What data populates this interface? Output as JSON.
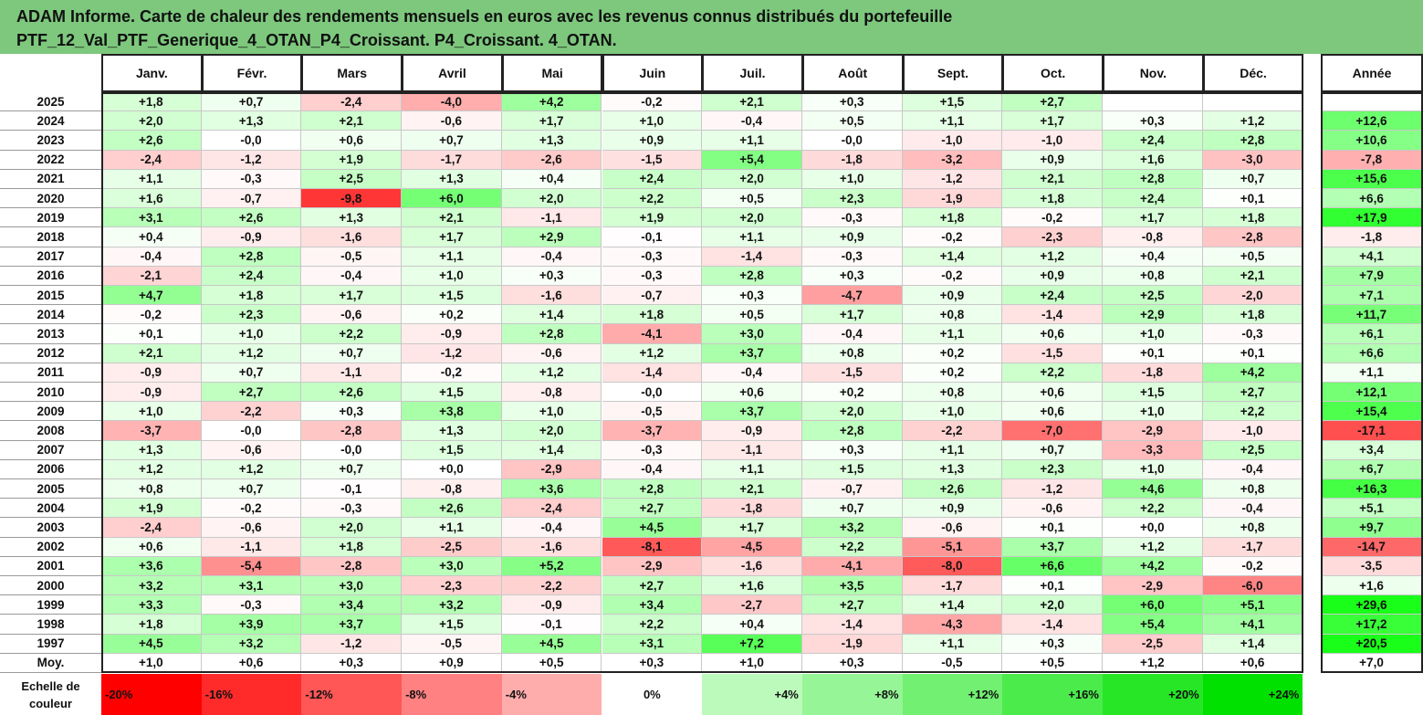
{
  "title": {
    "line1": "ADAM Informe. Carte de chaleur des rendements mensuels en euros avec les revenus connus distribués du portefeuille",
    "line2": "PTF_12_Val_PTF_Generique_4_OTAN_P4_Croissant. P4_Croissant. 4_OTAN."
  },
  "chart_data": {
    "type": "heatmap",
    "columns": [
      "Janv.",
      "Févr.",
      "Mars",
      "Avril",
      "Mai",
      "Juin",
      "Juil.",
      "Août",
      "Sept.",
      "Oct.",
      "Nov.",
      "Déc."
    ],
    "annual_column": "Année",
    "rows": [
      {
        "label": "2025",
        "values": [
          "+1,8",
          "+0,7",
          "-2,4",
          "-4,0",
          "+4,2",
          "-0,2",
          "+2,1",
          "+0,3",
          "+1,5",
          "+2,7",
          "",
          ""
        ],
        "annual": ""
      },
      {
        "label": "2024",
        "values": [
          "+2,0",
          "+1,3",
          "+2,1",
          "-0,6",
          "+1,7",
          "+1,0",
          "-0,4",
          "+0,5",
          "+1,1",
          "+1,7",
          "+0,3",
          "+1,2"
        ],
        "annual": "+12,6"
      },
      {
        "label": "2023",
        "values": [
          "+2,6",
          "-0,0",
          "+0,6",
          "+0,7",
          "+1,3",
          "+0,9",
          "+1,1",
          "-0,0",
          "-1,0",
          "-1,0",
          "+2,4",
          "+2,8"
        ],
        "annual": "+10,6"
      },
      {
        "label": "2022",
        "values": [
          "-2,4",
          "-1,2",
          "+1,9",
          "-1,7",
          "-2,6",
          "-1,5",
          "+5,4",
          "-1,8",
          "-3,2",
          "+0,9",
          "+1,6",
          "-3,0"
        ],
        "annual": "-7,8"
      },
      {
        "label": "2021",
        "values": [
          "+1,1",
          "-0,3",
          "+2,5",
          "+1,3",
          "+0,4",
          "+2,4",
          "+2,0",
          "+1,0",
          "-1,2",
          "+2,1",
          "+2,8",
          "+0,7"
        ],
        "annual": "+15,6"
      },
      {
        "label": "2020",
        "values": [
          "+1,6",
          "-0,7",
          "-9,8",
          "+6,0",
          "+2,0",
          "+2,2",
          "+0,5",
          "+2,3",
          "-1,9",
          "+1,8",
          "+2,4",
          "+0,1"
        ],
        "annual": "+6,6"
      },
      {
        "label": "2019",
        "values": [
          "+3,1",
          "+2,6",
          "+1,3",
          "+2,1",
          "-1,1",
          "+1,9",
          "+2,0",
          "-0,3",
          "+1,8",
          "-0,2",
          "+1,7",
          "+1,8"
        ],
        "annual": "+17,9"
      },
      {
        "label": "2018",
        "values": [
          "+0,4",
          "-0,9",
          "-1,6",
          "+1,7",
          "+2,9",
          "-0,1",
          "+1,1",
          "+0,9",
          "-0,2",
          "-2,3",
          "-0,8",
          "-2,8"
        ],
        "annual": "-1,8"
      },
      {
        "label": "2017",
        "values": [
          "-0,4",
          "+2,8",
          "-0,5",
          "+1,1",
          "-0,4",
          "-0,3",
          "-1,4",
          "-0,3",
          "+1,4",
          "+1,2",
          "+0,4",
          "+0,5"
        ],
        "annual": "+4,1"
      },
      {
        "label": "2016",
        "values": [
          "-2,1",
          "+2,4",
          "-0,4",
          "+1,0",
          "+0,3",
          "-0,3",
          "+2,8",
          "+0,3",
          "-0,2",
          "+0,9",
          "+0,8",
          "+2,1"
        ],
        "annual": "+7,9"
      },
      {
        "label": "2015",
        "values": [
          "+4,7",
          "+1,8",
          "+1,7",
          "+1,5",
          "-1,6",
          "-0,7",
          "+0,3",
          "-4,7",
          "+0,9",
          "+2,4",
          "+2,5",
          "-2,0"
        ],
        "annual": "+7,1"
      },
      {
        "label": "2014",
        "values": [
          "-0,2",
          "+2,3",
          "-0,6",
          "+0,2",
          "+1,4",
          "+1,8",
          "+0,5",
          "+1,7",
          "+0,8",
          "-1,4",
          "+2,9",
          "+1,8"
        ],
        "annual": "+11,7"
      },
      {
        "label": "2013",
        "values": [
          "+0,1",
          "+1,0",
          "+2,2",
          "-0,9",
          "+2,8",
          "-4,1",
          "+3,0",
          "-0,4",
          "+1,1",
          "+0,6",
          "+1,0",
          "-0,3"
        ],
        "annual": "+6,1"
      },
      {
        "label": "2012",
        "values": [
          "+2,1",
          "+1,2",
          "+0,7",
          "-1,2",
          "-0,6",
          "+1,2",
          "+3,7",
          "+0,8",
          "+0,2",
          "-1,5",
          "+0,1",
          "+0,1"
        ],
        "annual": "+6,6"
      },
      {
        "label": "2011",
        "values": [
          "-0,9",
          "+0,7",
          "-1,1",
          "-0,2",
          "+1,2",
          "-1,4",
          "-0,4",
          "-1,5",
          "+0,2",
          "+2,2",
          "-1,8",
          "+4,2"
        ],
        "annual": "+1,1"
      },
      {
        "label": "2010",
        "values": [
          "-0,9",
          "+2,7",
          "+2,6",
          "+1,5",
          "-0,8",
          "-0,0",
          "+0,6",
          "+0,2",
          "+0,8",
          "+0,6",
          "+1,5",
          "+2,7"
        ],
        "annual": "+12,1"
      },
      {
        "label": "2009",
        "values": [
          "+1,0",
          "-2,2",
          "+0,3",
          "+3,8",
          "+1,0",
          "-0,5",
          "+3,7",
          "+2,0",
          "+1,0",
          "+0,6",
          "+1,0",
          "+2,2"
        ],
        "annual": "+15,4"
      },
      {
        "label": "2008",
        "values": [
          "-3,7",
          "-0,0",
          "-2,8",
          "+1,3",
          "+2,0",
          "-3,7",
          "-0,9",
          "+2,8",
          "-2,2",
          "-7,0",
          "-2,9",
          "-1,0"
        ],
        "annual": "-17,1"
      },
      {
        "label": "2007",
        "values": [
          "+1,3",
          "-0,6",
          "-0,0",
          "+1,5",
          "+1,4",
          "-0,3",
          "-1,1",
          "+0,3",
          "+1,1",
          "+0,7",
          "-3,3",
          "+2,5"
        ],
        "annual": "+3,4"
      },
      {
        "label": "2006",
        "values": [
          "+1,2",
          "+1,2",
          "+0,7",
          "+0,0",
          "-2,9",
          "-0,4",
          "+1,1",
          "+1,5",
          "+1,3",
          "+2,3",
          "+1,0",
          "-0,4"
        ],
        "annual": "+6,7"
      },
      {
        "label": "2005",
        "values": [
          "+0,8",
          "+0,7",
          "-0,1",
          "-0,8",
          "+3,6",
          "+2,8",
          "+2,1",
          "-0,7",
          "+2,6",
          "-1,2",
          "+4,6",
          "+0,8"
        ],
        "annual": "+16,3"
      },
      {
        "label": "2004",
        "values": [
          "+1,9",
          "-0,2",
          "-0,3",
          "+2,6",
          "-2,4",
          "+2,7",
          "-1,8",
          "+0,7",
          "+0,9",
          "-0,6",
          "+2,2",
          "-0,4"
        ],
        "annual": "+5,1"
      },
      {
        "label": "2003",
        "values": [
          "-2,4",
          "-0,6",
          "+2,0",
          "+1,1",
          "-0,4",
          "+4,5",
          "+1,7",
          "+3,2",
          "-0,6",
          "+0,1",
          "+0,0",
          "+0,8"
        ],
        "annual": "+9,7"
      },
      {
        "label": "2002",
        "values": [
          "+0,6",
          "-1,1",
          "+1,8",
          "-2,5",
          "-1,6",
          "-8,1",
          "-4,5",
          "+2,2",
          "-5,1",
          "+3,7",
          "+1,2",
          "-1,7"
        ],
        "annual": "-14,7"
      },
      {
        "label": "2001",
        "values": [
          "+3,6",
          "-5,4",
          "-2,8",
          "+3,0",
          "+5,2",
          "-2,9",
          "-1,6",
          "-4,1",
          "-8,0",
          "+6,6",
          "+4,2",
          "-0,2"
        ],
        "annual": "-3,5"
      },
      {
        "label": "2000",
        "values": [
          "+3,2",
          "+3,1",
          "+3,0",
          "-2,3",
          "-2,2",
          "+2,7",
          "+1,6",
          "+3,5",
          "-1,7",
          "+0,1",
          "-2,9",
          "-6,0"
        ],
        "annual": "+1,6"
      },
      {
        "label": "1999",
        "values": [
          "+3,3",
          "-0,3",
          "+3,4",
          "+3,2",
          "-0,9",
          "+3,4",
          "-2,7",
          "+2,7",
          "+1,4",
          "+2,0",
          "+6,0",
          "+5,1"
        ],
        "annual": "+29,6"
      },
      {
        "label": "1998",
        "values": [
          "+1,8",
          "+3,9",
          "+3,7",
          "+1,5",
          "-0,1",
          "+2,2",
          "+0,4",
          "-1,4",
          "-4,3",
          "-1,4",
          "+5,4",
          "+4,1"
        ],
        "annual": "+17,2"
      },
      {
        "label": "1997",
        "values": [
          "+4,5",
          "+3,2",
          "-1,2",
          "-0,5",
          "+4,5",
          "+3,1",
          "+7,2",
          "-1,9",
          "+1,1",
          "+0,3",
          "-2,5",
          "+1,4"
        ],
        "annual": "+20,5"
      }
    ],
    "average": {
      "label": "Moy.",
      "values": [
        "+1,0",
        "+0,6",
        "+0,3",
        "+0,9",
        "+0,5",
        "+0,3",
        "+1,0",
        "+0,3",
        "-0,5",
        "+0,5",
        "+1,2",
        "+0,6"
      ],
      "annual": "+7,0"
    },
    "legend": {
      "label_line1": "Echelle de",
      "label_line2": "couleur",
      "steps": [
        {
          "label": "-20%",
          "value": -20
        },
        {
          "label": "-16%",
          "value": -16
        },
        {
          "label": "-12%",
          "value": -12
        },
        {
          "label": "-8%",
          "value": -8
        },
        {
          "label": "-4%",
          "value": -4
        },
        {
          "label": "0%",
          "value": 0
        },
        {
          "label": "+4%",
          "value": 4
        },
        {
          "label": "+8%",
          "value": 8
        },
        {
          "label": "+12%",
          "value": 12
        },
        {
          "label": "+16%",
          "value": 16
        },
        {
          "label": "+20%",
          "value": 20
        },
        {
          "label": "+24%",
          "value": 24
        }
      ]
    },
    "colors": {
      "title_bg": "#7dc87d",
      "negative_extreme": "#ff0000",
      "neutral": "#ffffff",
      "positive_extreme": "#00ee00"
    }
  }
}
